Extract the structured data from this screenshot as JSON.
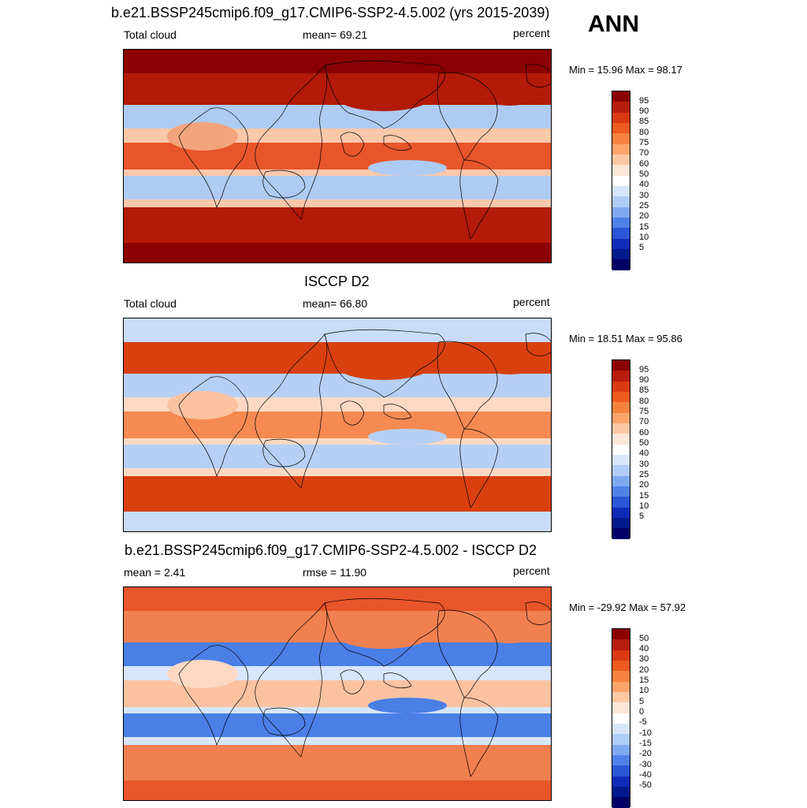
{
  "header": {
    "season": "ANN"
  },
  "panels": [
    {
      "title": "b.e21.BSSP245cmip6.f09_g17.CMIP6-SSP2-4.5.002 (yrs 2015-2039)",
      "left_label": "Total cloud",
      "center_label": "mean=  69.21",
      "right_label": "percent",
      "minmax": "Min =  15.96 Max =  98.17",
      "colorbar_levels": [
        "95",
        "90",
        "85",
        "80",
        "75",
        "70",
        "60",
        "50",
        "40",
        "30",
        "25",
        "20",
        "15",
        "10",
        "5"
      ],
      "colorbar_colors": [
        "#8b0000",
        "#b71c0e",
        "#d93a12",
        "#ef5a1f",
        "#f7823f",
        "#fba56b",
        "#fdc8a4",
        "#fde6d6",
        "#ffffff",
        "#d7e6fb",
        "#b0cdf7",
        "#7ea9f1",
        "#4f82e8",
        "#2a55d6",
        "#0f2cb8",
        "#001a8c",
        "#000066"
      ],
      "map": {
        "tropics": "#e8552a",
        "polar": "#8b0000",
        "storm": "#b31a08",
        "dry": "#aecbf3",
        "land": "#f4a47c",
        "mid": "#fbc8aa"
      }
    },
    {
      "title": "ISCCP D2",
      "left_label": "Total cloud",
      "center_label": "mean=  66.80",
      "right_label": "percent",
      "minmax": "Min =  18.51 Max =  95.86",
      "colorbar_levels": [
        "95",
        "90",
        "85",
        "80",
        "75",
        "70",
        "60",
        "50",
        "40",
        "30",
        "25",
        "20",
        "15",
        "10",
        "5"
      ],
      "colorbar_colors": [
        "#8b0000",
        "#b71c0e",
        "#d93a12",
        "#ef5a1f",
        "#f7823f",
        "#fba56b",
        "#fdc8a4",
        "#fde6d6",
        "#ffffff",
        "#d7e6fb",
        "#b0cdf7",
        "#7ea9f1",
        "#4f82e8",
        "#2a55d6",
        "#0f2cb8",
        "#001a8c",
        "#000066"
      ],
      "map": {
        "tropics": "#f58a52",
        "polar": "#c8dcf7",
        "storm": "#d9400f",
        "dry": "#b6d0f5",
        "land": "#fbc2a0",
        "mid": "#fdd9c4"
      }
    },
    {
      "title": "b.e21.BSSP245cmip6.f09_g17.CMIP6-SSP2-4.5.002 - ISCCP D2",
      "left_label": "mean =   2.41",
      "center_label": "rmse =  11.90",
      "right_label": "percent",
      "minmax": "Min = -29.92 Max =  57.92",
      "colorbar_levels": [
        "50",
        "40",
        "30",
        "20",
        "15",
        "10",
        "5",
        "0",
        "-5",
        "-10",
        "-15",
        "-20",
        "-30",
        "-40",
        "-50"
      ],
      "colorbar_colors": [
        "#8b0000",
        "#b71c0e",
        "#d93a12",
        "#ef5a1f",
        "#f7823f",
        "#fba56b",
        "#fdc8a4",
        "#fde6d6",
        "#ffffff",
        "#d7e6fb",
        "#b0cdf7",
        "#7ea9f1",
        "#4f82e8",
        "#2a55d6",
        "#0f2cb8",
        "#001a8c",
        "#000066"
      ],
      "map": {
        "tropics": "#fbc2a0",
        "polar": "#e8552a",
        "storm": "#f08050",
        "dry": "#4a7fe6",
        "land": "#fdd9c4",
        "mid": "#d7e6fb"
      }
    }
  ]
}
